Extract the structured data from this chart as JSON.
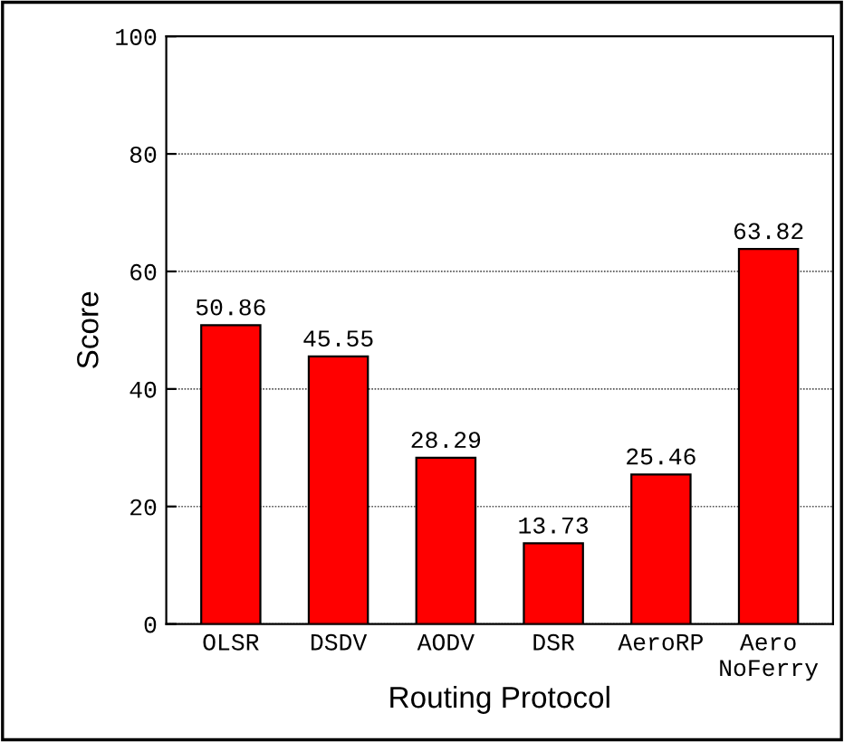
{
  "chart_data": {
    "type": "bar",
    "xlabel": "Routing Protocol",
    "ylabel": "Score",
    "categories": [
      "OLSR",
      "DSDV",
      "AODV",
      "DSR",
      "AeroRP",
      "Aero\nNoFerry"
    ],
    "values": [
      50.86,
      45.55,
      28.29,
      13.73,
      25.46,
      63.82
    ],
    "color": "#ff0000",
    "ylim": [
      0,
      100
    ],
    "yticks": [
      0,
      20,
      40,
      60,
      80,
      100
    ],
    "grid": "y",
    "data_labels": true
  }
}
